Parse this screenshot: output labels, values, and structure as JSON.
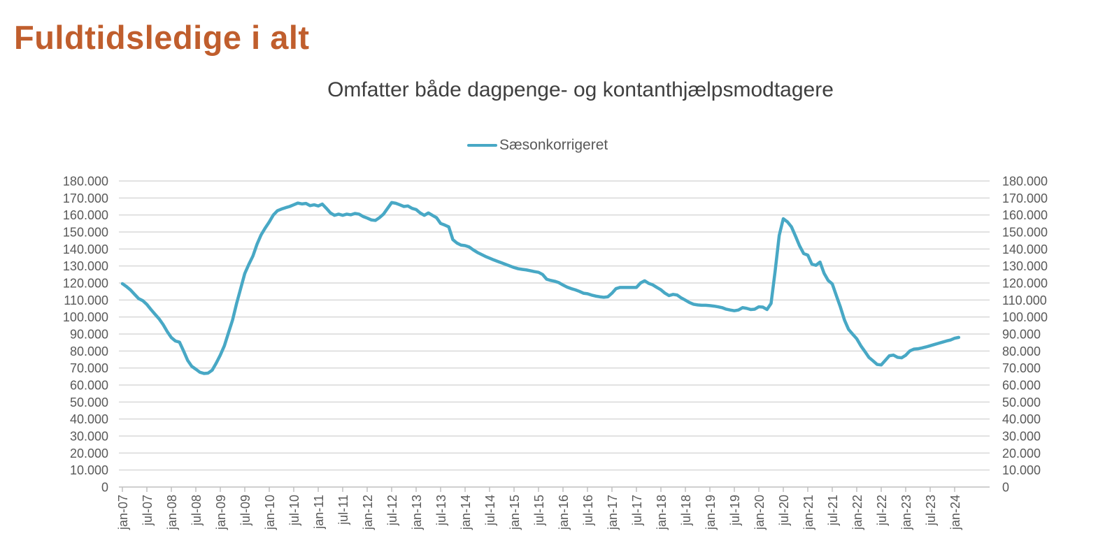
{
  "header": {
    "title": "Fuldtidsledige i alt",
    "title_color": "#C05E2D"
  },
  "chart": {
    "subtitle": "Omfatter både dagpenge- og kontanthjælpsmodtagere",
    "legend": {
      "label": "Sæsonkorrigeret",
      "line_color": "#48A8C5"
    }
  },
  "chart_data": {
    "type": "line",
    "title": "Omfatter både dagpenge- og kontanthjælpsmodtagere",
    "legend_position": "top-center",
    "grid": "horizontal",
    "dual_y_axis": true,
    "ylim": [
      0,
      180000
    ],
    "y_step": 10000,
    "y_tick_labels": [
      "0",
      "10.000",
      "20.000",
      "30.000",
      "40.000",
      "50.000",
      "60.000",
      "70.000",
      "80.000",
      "90.000",
      "100.000",
      "110.000",
      "120.000",
      "130.000",
      "140.000",
      "150.000",
      "160.000",
      "170.000",
      "180.000"
    ],
    "x_tick_labels": [
      "jan-07",
      "jul-07",
      "jan-08",
      "jul-08",
      "jan-09",
      "jul-09",
      "jan-10",
      "jul-10",
      "jan-11",
      "jul-11",
      "jan-12",
      "jul-12",
      "jan-13",
      "jul-13",
      "jan-14",
      "jul-14",
      "jan-15",
      "jul-15",
      "jan-16",
      "jul-16",
      "jan-17",
      "jul-17",
      "jan-18",
      "jul-18",
      "jan-19",
      "jul-19",
      "jan-20",
      "jul-20",
      "jan-21",
      "jul-21",
      "jan-22",
      "jul-22",
      "jan-23",
      "jul-23",
      "jan-24"
    ],
    "x_frequency": "monthly",
    "x_start": "jan-07",
    "x_end": "feb-24",
    "series": [
      {
        "name": "Sæsonkorrigeret",
        "color": "#48A8C5",
        "values": [
          119600,
          117900,
          115900,
          113300,
          110800,
          109600,
          107400,
          104400,
          101600,
          98900,
          95500,
          91400,
          87900,
          85900,
          85200,
          80000,
          74500,
          71000,
          69300,
          67500,
          66800,
          67000,
          68700,
          72900,
          77600,
          83100,
          90700,
          98200,
          108000,
          116800,
          125600,
          131000,
          135900,
          142800,
          148300,
          152300,
          155900,
          160000,
          162500,
          163500,
          164300,
          165000,
          166000,
          167000,
          166500,
          166800,
          165500,
          166000,
          165300,
          166400,
          163900,
          161200,
          159800,
          160500,
          159800,
          160500,
          160100,
          160900,
          160500,
          159100,
          158200,
          157100,
          156800,
          158400,
          160500,
          163900,
          167300,
          166900,
          166000,
          165000,
          165300,
          163900,
          163200,
          161200,
          159800,
          161200,
          159800,
          158400,
          155000,
          154100,
          153000,
          145500,
          143500,
          142300,
          142000,
          141200,
          139500,
          138000,
          136800,
          135600,
          134600,
          133600,
          132700,
          131800,
          130900,
          130000,
          129100,
          128400,
          128000,
          127700,
          127200,
          126700,
          126300,
          125000,
          122200,
          121500,
          121000,
          120200,
          118800,
          117600,
          116700,
          116000,
          115100,
          114000,
          113700,
          112900,
          112300,
          111900,
          111600,
          111900,
          114000,
          116700,
          117400,
          117400,
          117400,
          117400,
          117400,
          120000,
          121300,
          119800,
          118900,
          117400,
          116000,
          114000,
          112600,
          113300,
          112900,
          111200,
          109900,
          108500,
          107500,
          107100,
          106900,
          106900,
          106700,
          106400,
          106000,
          105500,
          104600,
          104100,
          103700,
          104100,
          105500,
          105100,
          104400,
          104600,
          106000,
          105800,
          104400,
          108000,
          127000,
          148000,
          157800,
          156000,
          153000,
          147500,
          141800,
          137300,
          136400,
          131100,
          130400,
          132300,
          125700,
          121500,
          119500,
          112600,
          105800,
          98200,
          92700,
          89900,
          87200,
          83100,
          79700,
          76200,
          74200,
          72100,
          71800,
          74500,
          77200,
          77600,
          76300,
          76000,
          77500,
          80000,
          81100,
          81300,
          81800,
          82400,
          83100,
          83800,
          84500,
          85200,
          85900,
          86500,
          87500,
          88000
        ]
      }
    ]
  }
}
